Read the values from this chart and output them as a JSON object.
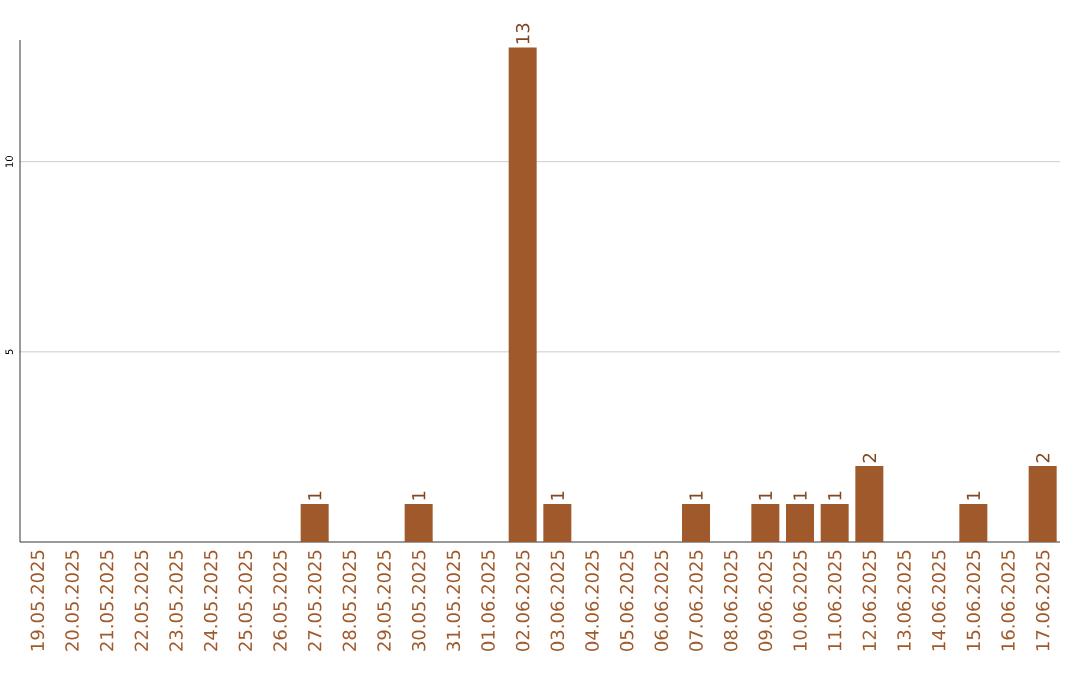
{
  "chart_data": {
    "type": "bar",
    "categories": [
      "19.05.2025",
      "20.05.2025",
      "21.05.2025",
      "22.05.2025",
      "23.05.2025",
      "24.05.2025",
      "25.05.2025",
      "26.05.2025",
      "27.05.2025",
      "28.05.2025",
      "29.05.2025",
      "30.05.2025",
      "31.05.2025",
      "01.06.2025",
      "02.06.2025",
      "03.06.2025",
      "04.06.2025",
      "05.06.2025",
      "06.06.2025",
      "07.06.2025",
      "08.06.2025",
      "09.06.2025",
      "10.06.2025",
      "11.06.2025",
      "12.06.2025",
      "13.06.2025",
      "14.06.2025",
      "15.06.2025",
      "16.06.2025",
      "17.06.2025"
    ],
    "values": [
      0,
      0,
      0,
      0,
      0,
      0,
      0,
      0,
      1,
      0,
      0,
      1,
      0,
      0,
      13,
      1,
      0,
      0,
      0,
      1,
      0,
      1,
      1,
      1,
      2,
      0,
      0,
      1,
      0,
      2
    ],
    "value_labels": [
      null,
      null,
      null,
      null,
      null,
      null,
      null,
      null,
      "1",
      null,
      null,
      "1",
      null,
      null,
      "13",
      "1",
      null,
      null,
      null,
      "1",
      null,
      "1",
      "1",
      "1",
      "2",
      null,
      null,
      "1",
      null,
      "2"
    ],
    "color": "#a0592b",
    "ylim": [
      0,
      13.2
    ],
    "yticks": [
      5,
      10
    ],
    "grid": "y"
  }
}
